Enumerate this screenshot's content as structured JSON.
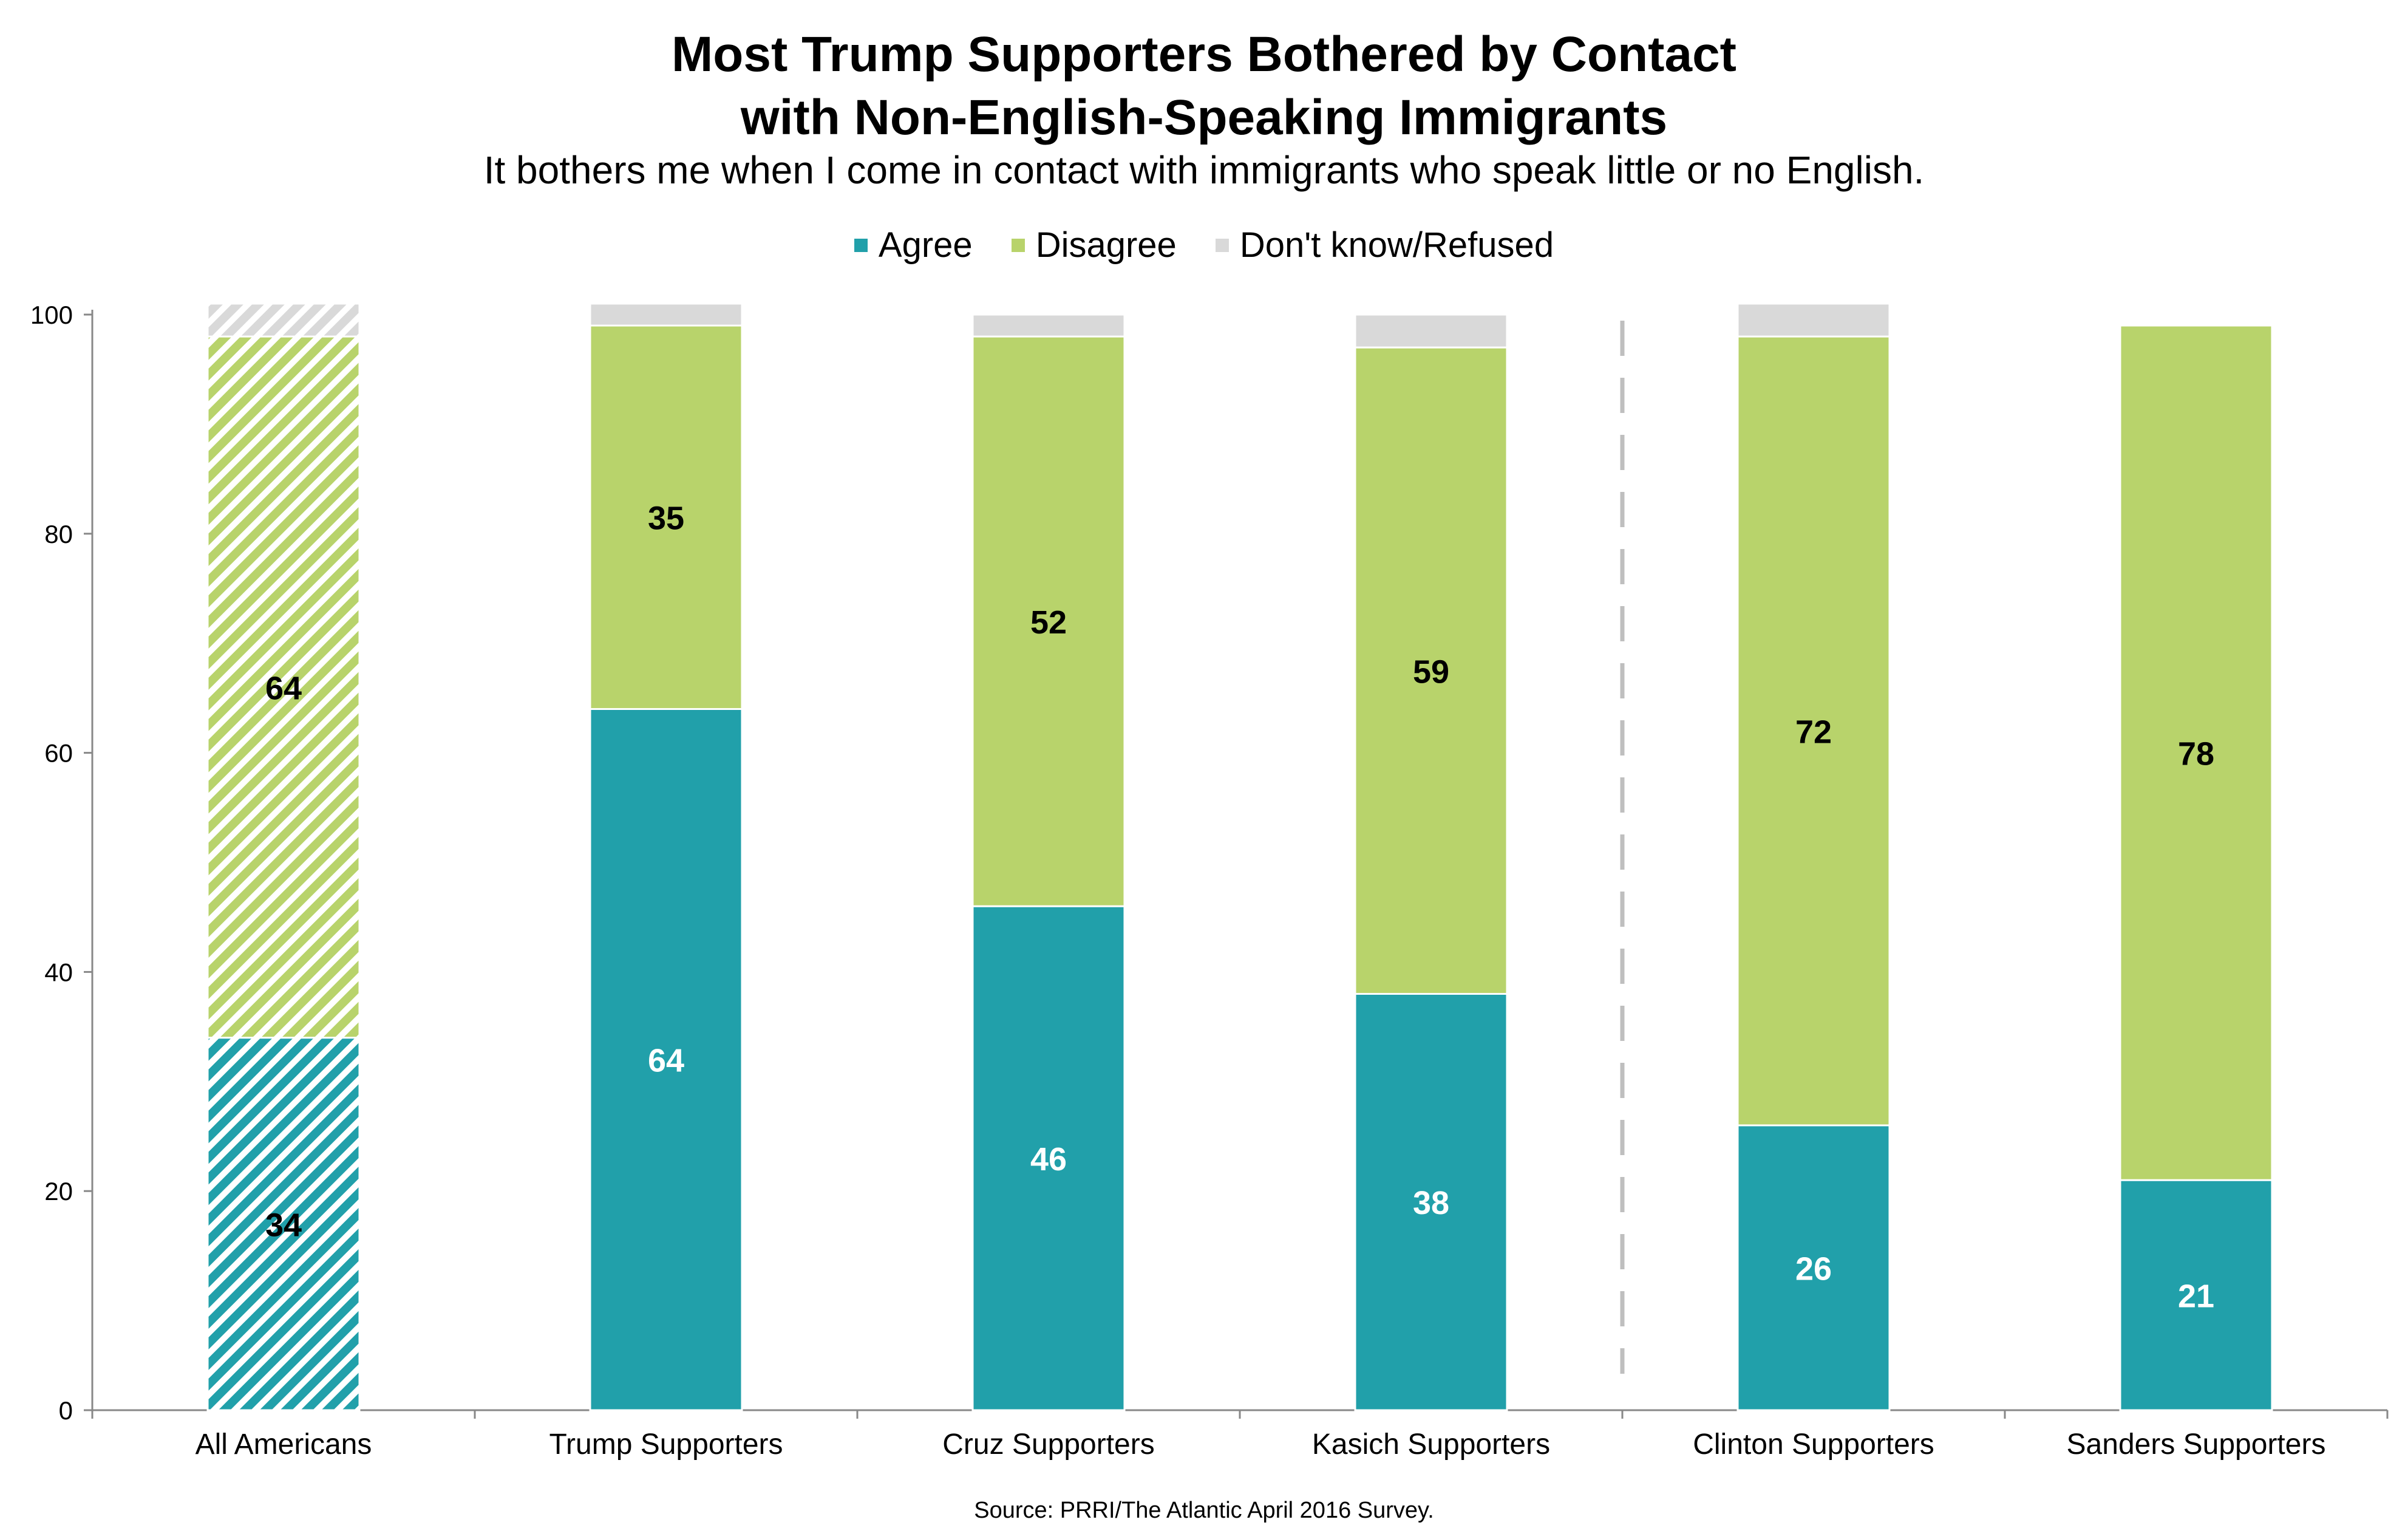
{
  "title_lines": [
    "Most Trump Supporters Bothered by Contact",
    "with Non-English-Speaking Immigrants"
  ],
  "subtitle": "It bothers me when I come in contact with immigrants who speak little or no English.",
  "source": "Source: PRRI/The Atlantic April 2016 Survey.",
  "colors": {
    "agree": "#21A0AA",
    "disagree": "#B8D36B",
    "dontknow": "#D9D9D9",
    "axis": "#888888",
    "divider": "#BFBFBF"
  },
  "chart_data": {
    "type": "bar",
    "stacked": true,
    "categories": [
      "All Americans",
      "Trump Supporters",
      "Cruz Supporters",
      "Kasich Supporters",
      "Clinton Supporters",
      "Sanders Supporters"
    ],
    "series": [
      {
        "name": "Agree",
        "values": [
          34,
          64,
          46,
          38,
          26,
          21
        ]
      },
      {
        "name": "Disagree",
        "values": [
          64,
          35,
          52,
          59,
          72,
          78
        ]
      },
      {
        "name": "Don't know/Refused",
        "values": [
          3,
          2,
          2,
          3,
          3,
          0
        ]
      }
    ],
    "data_labels": {
      "Agree": [
        "34",
        "64",
        "46",
        "38",
        "26",
        "21"
      ],
      "Disagree": [
        "64",
        "35",
        "52",
        "59",
        "72",
        "78"
      ]
    },
    "hatched_categories": [
      "All Americans"
    ],
    "divider_after_category": "Kasich Supporters",
    "ylim": [
      0,
      100
    ],
    "yticks": [
      0,
      20,
      40,
      60,
      80,
      100
    ],
    "grid": false,
    "legend_position": "top-center"
  }
}
